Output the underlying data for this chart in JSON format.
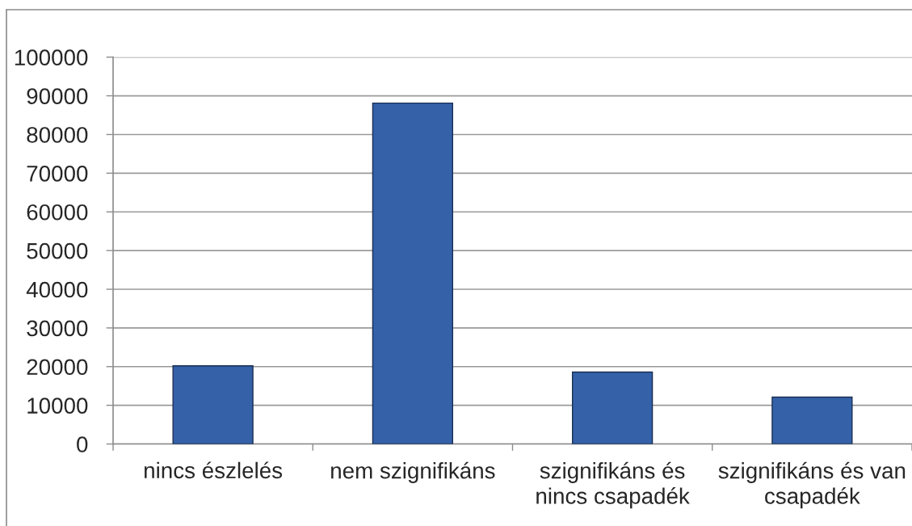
{
  "chart_data": {
    "type": "bar",
    "categories": [
      "nincs észlelés",
      "nem szignifikáns",
      "szignifikáns és\nnincs csapadék",
      "szignifikáns és van\ncsapadék"
    ],
    "values": [
      20200,
      88100,
      18600,
      12100
    ],
    "color": "#3461a8",
    "ylim": [
      0,
      100000
    ],
    "yticks": [
      0,
      10000,
      20000,
      30000,
      40000,
      50000,
      60000,
      70000,
      80000,
      90000,
      100000
    ],
    "grid": "y"
  }
}
